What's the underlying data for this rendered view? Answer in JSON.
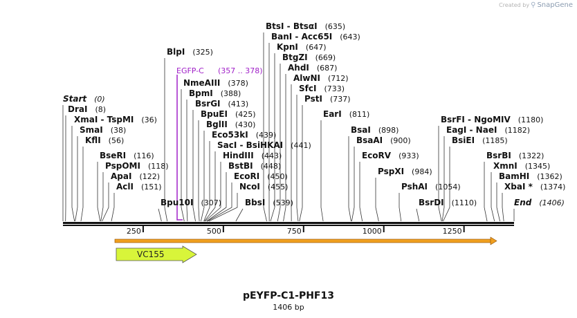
{
  "brand": {
    "created_by": "Created by",
    "app": "SnapGene"
  },
  "plasmid": {
    "name": "pEYFP-C1-PHF13",
    "length_label": "1406 bp",
    "length": 1406
  },
  "ruler": {
    "ticks": [
      250,
      500,
      750,
      1000,
      1250
    ],
    "labels": [
      "250",
      "500",
      "750",
      "1000",
      "1250"
    ]
  },
  "features": {
    "egfp": {
      "name": "EGFP-C",
      "range": "(357 .. 378)",
      "start": 357,
      "end": 378,
      "color": "#a020c8"
    },
    "orf": {
      "start": 166,
      "end": 1406,
      "color": "#f0a020"
    },
    "primer": {
      "name": "VC155",
      "start": 166,
      "end": 416,
      "color": "#d8f53a"
    }
  },
  "enzymes": [
    {
      "name": "Start",
      "pos_label": "(0)",
      "pos": 0
    },
    {
      "name": "DraI",
      "pos_label": "(8)",
      "pos": 8
    },
    {
      "name": "XmaI  -  TspMI",
      "pos_label": "(36)",
      "pos": 36
    },
    {
      "name": "SmaI",
      "pos_label": "(38)",
      "pos": 38
    },
    {
      "name": "KflI",
      "pos_label": "(56)",
      "pos": 56
    },
    {
      "name": "BseRI",
      "pos_label": "(116)",
      "pos": 116
    },
    {
      "name": "PspOMI",
      "pos_label": "(118)",
      "pos": 118
    },
    {
      "name": "ApaI",
      "pos_label": "(122)",
      "pos": 122
    },
    {
      "name": "AclI",
      "pos_label": "(151)",
      "pos": 151
    },
    {
      "name": "Bpu10I",
      "pos_label": "(307)",
      "pos": 307
    },
    {
      "name": "BlpI",
      "pos_label": "(325)",
      "pos": 325
    },
    {
      "name": "NmeAIII",
      "pos_label": "(378)",
      "pos": 378
    },
    {
      "name": "BpmI",
      "pos_label": "(388)",
      "pos": 388
    },
    {
      "name": "BsrGI",
      "pos_label": "(413)",
      "pos": 413
    },
    {
      "name": "BpuEI",
      "pos_label": "(425)",
      "pos": 425
    },
    {
      "name": "BglII",
      "pos_label": "(430)",
      "pos": 430
    },
    {
      "name": "Eco53kI",
      "pos_label": "(439)",
      "pos": 439
    },
    {
      "name": "SacI  -  BsiHKAI",
      "pos_label": "(441)",
      "pos": 441
    },
    {
      "name": "HindIII",
      "pos_label": "(443)",
      "pos": 443
    },
    {
      "name": "BstBI",
      "pos_label": "(448)",
      "pos": 448
    },
    {
      "name": "EcoRI",
      "pos_label": "(450)",
      "pos": 450
    },
    {
      "name": "NcoI",
      "pos_label": "(455)",
      "pos": 455
    },
    {
      "name": "BbsI",
      "pos_label": "(539)",
      "pos": 539
    },
    {
      "name": "BtsI  -  BtsαI",
      "pos_label": "(635)",
      "pos": 635
    },
    {
      "name": "BanI  -  Acc65I",
      "pos_label": "(643)",
      "pos": 643
    },
    {
      "name": "KpnI",
      "pos_label": "(647)",
      "pos": 647
    },
    {
      "name": "BtgZI",
      "pos_label": "(669)",
      "pos": 669
    },
    {
      "name": "AhdI",
      "pos_label": "(687)",
      "pos": 687
    },
    {
      "name": "AlwNI",
      "pos_label": "(712)",
      "pos": 712
    },
    {
      "name": "SfcI",
      "pos_label": "(733)",
      "pos": 733
    },
    {
      "name": "PstI",
      "pos_label": "(737)",
      "pos": 737
    },
    {
      "name": "EarI",
      "pos_label": "(811)",
      "pos": 811
    },
    {
      "name": "BsaI",
      "pos_label": "(898)",
      "pos": 898
    },
    {
      "name": "BsaAI",
      "pos_label": "(900)",
      "pos": 900
    },
    {
      "name": "EcoRV",
      "pos_label": "(933)",
      "pos": 933
    },
    {
      "name": "PspXI",
      "pos_label": "(984)",
      "pos": 984
    },
    {
      "name": "PshAI",
      "pos_label": "(1054)",
      "pos": 1054
    },
    {
      "name": "BsrDI",
      "pos_label": "(1110)",
      "pos": 1110
    },
    {
      "name": "BsrFI  -  NgoMIV",
      "pos_label": "(1180)",
      "pos": 1180
    },
    {
      "name": "EagI  -  NaeI",
      "pos_label": "(1182)",
      "pos": 1182
    },
    {
      "name": "BsiEI",
      "pos_label": "(1185)",
      "pos": 1185
    },
    {
      "name": "BsrBI",
      "pos_label": "(1322)",
      "pos": 1322
    },
    {
      "name": "XmnI",
      "pos_label": "(1345)",
      "pos": 1345
    },
    {
      "name": "BamHI",
      "pos_label": "(1362)",
      "pos": 1362
    },
    {
      "name": "XbaI *",
      "pos_label": "(1374)",
      "pos": 1374
    },
    {
      "name": "End",
      "pos_label": "(1406)",
      "pos": 1406
    }
  ]
}
